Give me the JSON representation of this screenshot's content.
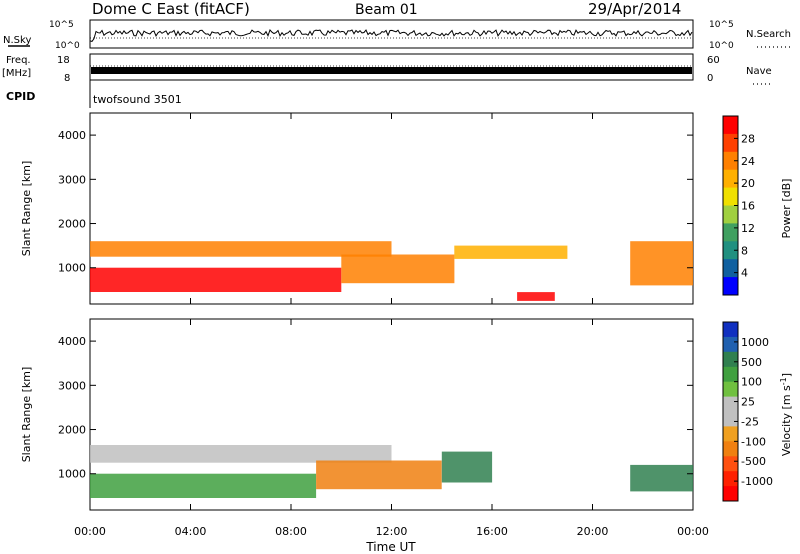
{
  "header": {
    "station": "Dome C East (fitACF)",
    "beam": "Beam 01",
    "date": "29/Apr/2014"
  },
  "strip_panels": {
    "nsky_label": "N.Sky",
    "nsearch_label": "N.Search",
    "noise_ticks_left": [
      "10^5",
      "10^0"
    ],
    "noise_ticks_right": [
      "10^5",
      "10^0"
    ],
    "freq_label_top": "Freq.",
    "freq_label_unit": "[MHz]",
    "freq_ticks": [
      "18",
      "8"
    ],
    "nave_label": "Nave",
    "nave_ticks": [
      "60",
      "0"
    ],
    "cpid_label": "CPID",
    "cpid_value": "twofsound 3501"
  },
  "chart_data": [
    {
      "type": "heatmap",
      "name": "power-panel",
      "ylabel": "Slant Range [km]",
      "ylim": [
        180,
        4500
      ],
      "y_ticks": [
        1000,
        2000,
        3000,
        4000
      ],
      "xlim": [
        0,
        24
      ],
      "x_ticks": [
        0,
        4,
        8,
        12,
        16,
        20,
        24
      ],
      "colorbar": {
        "label": "Power [dB]",
        "ticks": [
          "28",
          "24",
          "20",
          "16",
          "12",
          "8",
          "4"
        ],
        "colors": [
          "#ff0000",
          "#ff4000",
          "#ff8000",
          "#ffb000",
          "#f0e000",
          "#a0d040",
          "#40a060",
          "#209080",
          "#1060a0",
          "#0000ff"
        ]
      },
      "features": [
        {
          "t0": 0.0,
          "t1": 10.0,
          "r0": 450,
          "r1": 1000,
          "value": "28"
        },
        {
          "t0": 0.0,
          "t1": 12.0,
          "r0": 1250,
          "r1": 1600,
          "value": "24"
        },
        {
          "t0": 10.0,
          "t1": 14.5,
          "r0": 650,
          "r1": 1300,
          "value": "24"
        },
        {
          "t0": 14.5,
          "t1": 19.0,
          "r0": 1200,
          "r1": 1500,
          "value": "20"
        },
        {
          "t0": 17.0,
          "t1": 18.5,
          "r0": 250,
          "r1": 450,
          "value": "28"
        },
        {
          "t0": 21.5,
          "t1": 24.0,
          "r0": 600,
          "r1": 1600,
          "value": "24"
        }
      ]
    },
    {
      "type": "heatmap",
      "name": "velocity-panel",
      "ylabel": "Slant Range [km]",
      "ylim": [
        180,
        4500
      ],
      "y_ticks": [
        1000,
        2000,
        3000,
        4000
      ],
      "xlim": [
        0,
        24
      ],
      "x_ticks": [
        0,
        4,
        8,
        12,
        16,
        20,
        24
      ],
      "xlabel": "Time UT",
      "x_tick_labels": [
        "00:00",
        "04:00",
        "08:00",
        "12:00",
        "16:00",
        "20:00",
        "00:00"
      ],
      "colorbar": {
        "label": "Velocity [m s",
        "label_sup": "-1",
        "label_end": "]",
        "ticks": [
          "1000",
          "500",
          "100",
          "25",
          "-25",
          "-100",
          "-500",
          "-1000"
        ],
        "colors": [
          "#1030c0",
          "#2060b0",
          "#308050",
          "#40a040",
          "#70c040",
          "#c0c0c0",
          "#c0c0c0",
          "#f0a020",
          "#f08010",
          "#ff5010",
          "#ff2000",
          "#ff0000"
        ]
      },
      "features": [
        {
          "t0": 0.0,
          "t1": 4.0,
          "r0": 450,
          "r1": 1000,
          "value": "100"
        },
        {
          "t0": 0.0,
          "t1": 12.0,
          "r0": 1250,
          "r1": 1650,
          "value": "25"
        },
        {
          "t0": 4.0,
          "t1": 9.0,
          "r0": 450,
          "r1": 1000,
          "value": "100"
        },
        {
          "t0": 9.0,
          "t1": 14.0,
          "r0": 650,
          "r1": 1300,
          "value": "-100"
        },
        {
          "t0": 14.0,
          "t1": 16.0,
          "r0": 800,
          "r1": 1500,
          "value": "500"
        },
        {
          "t0": 21.5,
          "t1": 24.0,
          "r0": 600,
          "r1": 1200,
          "value": "500"
        }
      ]
    }
  ]
}
